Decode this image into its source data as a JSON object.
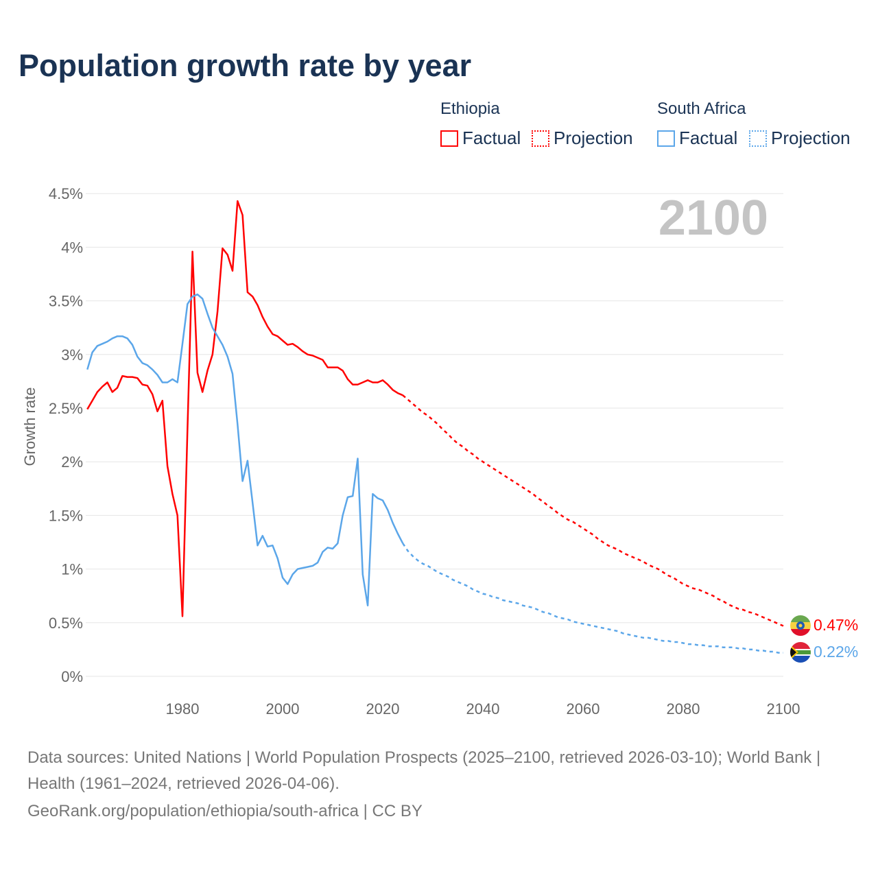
{
  "title": "Population growth rate by year",
  "legend": {
    "groups": [
      {
        "name": "Ethiopia",
        "color": "#ff0000",
        "items": [
          "Factual",
          "Projection"
        ]
      },
      {
        "name": "South Africa",
        "color": "#5ba6e9",
        "items": [
          "Factual",
          "Projection"
        ]
      }
    ]
  },
  "year_display": "2100",
  "footer": {
    "sources": "Data sources: United Nations | World Population Prospects (2025–2100, retrieved 2026-03-10); World Bank | Health (1961–2024, retrieved 2026-04-06).",
    "credit": "GeoRank.org/population/ethiopia/south-africa | CC BY"
  },
  "chart_data": {
    "type": "line",
    "title": "Population growth rate by year",
    "xlabel": "",
    "ylabel": "Growth rate",
    "xlim": [
      1961,
      2100
    ],
    "ylim": [
      0,
      4.5
    ],
    "x_ticks": [
      1980,
      2000,
      2020,
      2040,
      2060,
      2080,
      2100
    ],
    "y_ticks": [
      {
        "v": 0,
        "label": "0%"
      },
      {
        "v": 0.5,
        "label": "0.5%"
      },
      {
        "v": 1,
        "label": "1%"
      },
      {
        "v": 1.5,
        "label": "1.5%"
      },
      {
        "v": 2,
        "label": "2%"
      },
      {
        "v": 2.5,
        "label": "2.5%"
      },
      {
        "v": 3,
        "label": "3%"
      },
      {
        "v": 3.5,
        "label": "3.5%"
      },
      {
        "v": 4,
        "label": "4%"
      },
      {
        "v": 4.5,
        "label": "4.5%"
      }
    ],
    "grid": true,
    "series": [
      {
        "name": "Ethiopia",
        "color": "#ff0000",
        "end_label": "0.47%",
        "factual": {
          "start": 1961,
          "values": [
            2.49,
            2.57,
            2.65,
            2.7,
            2.74,
            2.65,
            2.69,
            2.8,
            2.79,
            2.79,
            2.78,
            2.72,
            2.71,
            2.63,
            2.47,
            2.57,
            1.96,
            1.7,
            1.5,
            0.56,
            2.3,
            3.96,
            2.83,
            2.65,
            2.85,
            3.0,
            3.4,
            3.99,
            3.93,
            3.78,
            4.43,
            4.3,
            3.58,
            3.54,
            3.46,
            3.35,
            3.26,
            3.19,
            3.17,
            3.13,
            3.09,
            3.1,
            3.07,
            3.03,
            3.0,
            2.99,
            2.97,
            2.95,
            2.88,
            2.88,
            2.88,
            2.85,
            2.77,
            2.72,
            2.72,
            2.74,
            2.76,
            2.74,
            2.74,
            2.76,
            2.72,
            2.67,
            2.64,
            2.62
          ]
        },
        "projection": {
          "start": 2024,
          "values": [
            2.62,
            2.58,
            2.54,
            2.5,
            2.46,
            2.43,
            2.39,
            2.35,
            2.3,
            2.26,
            2.21,
            2.17,
            2.14,
            2.1,
            2.07,
            2.03,
            2.0,
            1.97,
            1.94,
            1.91,
            1.88,
            1.85,
            1.82,
            1.79,
            1.76,
            1.73,
            1.7,
            1.66,
            1.63,
            1.59,
            1.56,
            1.52,
            1.49,
            1.46,
            1.44,
            1.41,
            1.38,
            1.35,
            1.32,
            1.28,
            1.25,
            1.22,
            1.2,
            1.18,
            1.15,
            1.13,
            1.11,
            1.09,
            1.07,
            1.04,
            1.02,
            1.0,
            0.97,
            0.94,
            0.92,
            0.89,
            0.86,
            0.84,
            0.82,
            0.81,
            0.79,
            0.77,
            0.75,
            0.72,
            0.7,
            0.67,
            0.65,
            0.63,
            0.62,
            0.6,
            0.59,
            0.57,
            0.55,
            0.53,
            0.51,
            0.49,
            0.47
          ]
        }
      },
      {
        "name": "South Africa",
        "color": "#5ba6e9",
        "end_label": "0.22%",
        "factual": {
          "start": 1961,
          "values": [
            2.86,
            3.02,
            3.08,
            3.1,
            3.12,
            3.15,
            3.17,
            3.17,
            3.15,
            3.09,
            2.98,
            2.92,
            2.9,
            2.86,
            2.81,
            2.74,
            2.74,
            2.77,
            2.74,
            3.1,
            3.47,
            3.54,
            3.56,
            3.52,
            3.38,
            3.25,
            3.17,
            3.09,
            2.98,
            2.82,
            2.35,
            1.82,
            2.01,
            1.62,
            1.22,
            1.31,
            1.21,
            1.22,
            1.1,
            0.92,
            0.86,
            0.95,
            1.0,
            1.01,
            1.02,
            1.03,
            1.06,
            1.16,
            1.2,
            1.19,
            1.24,
            1.5,
            1.67,
            1.68,
            2.03,
            0.95,
            0.66,
            1.7,
            1.66,
            1.64,
            1.55,
            1.43,
            1.33,
            1.24
          ]
        },
        "projection": {
          "start": 2024,
          "values": [
            1.24,
            1.17,
            1.12,
            1.08,
            1.05,
            1.03,
            1.0,
            0.97,
            0.95,
            0.93,
            0.9,
            0.88,
            0.86,
            0.84,
            0.81,
            0.79,
            0.77,
            0.76,
            0.74,
            0.73,
            0.71,
            0.7,
            0.69,
            0.68,
            0.66,
            0.65,
            0.64,
            0.62,
            0.6,
            0.59,
            0.57,
            0.55,
            0.54,
            0.53,
            0.51,
            0.5,
            0.49,
            0.48,
            0.47,
            0.46,
            0.45,
            0.44,
            0.43,
            0.42,
            0.4,
            0.39,
            0.38,
            0.37,
            0.36,
            0.36,
            0.35,
            0.34,
            0.33,
            0.33,
            0.32,
            0.32,
            0.31,
            0.3,
            0.3,
            0.29,
            0.29,
            0.28,
            0.28,
            0.28,
            0.27,
            0.27,
            0.27,
            0.26,
            0.26,
            0.25,
            0.25,
            0.24,
            0.24,
            0.23,
            0.23,
            0.22,
            0.22
          ]
        }
      }
    ]
  }
}
